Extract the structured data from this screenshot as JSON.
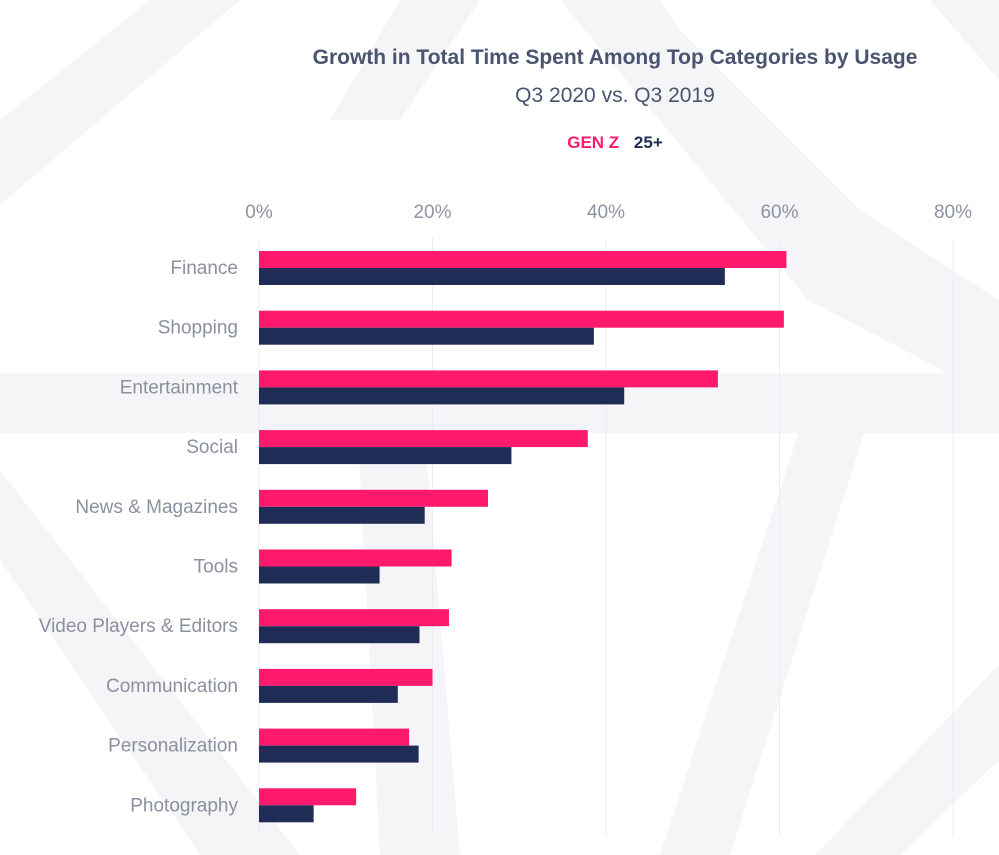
{
  "chart_data": {
    "type": "bar",
    "orientation": "horizontal",
    "title": "Growth in Total Time Spent Among Top Categories by Usage",
    "subtitle": "Q3 2020 vs. Q3 2019",
    "xlabel": "",
    "ylabel": "",
    "xlim": [
      0,
      80
    ],
    "x_ticks": [
      0,
      20,
      40,
      60,
      80
    ],
    "x_tick_labels": [
      "0%",
      "20%",
      "40%",
      "60%",
      "80%"
    ],
    "x_axis_position": "top",
    "grid": true,
    "legend_position": "top-center",
    "categories": [
      "Finance",
      "Shopping",
      "Entertainment",
      "Social",
      "News & Magazines",
      "Tools",
      "Video Players & Editors",
      "Communication",
      "Personalization",
      "Photography"
    ],
    "series": [
      {
        "name": "GEN Z",
        "color": "#ff1a6e",
        "values": [
          60.8,
          60.5,
          52.9,
          37.9,
          26.4,
          22.2,
          21.9,
          20.0,
          17.3,
          11.2
        ]
      },
      {
        "name": "25+",
        "color": "#1f2d56",
        "values": [
          53.7,
          38.6,
          42.1,
          29.1,
          19.1,
          13.9,
          18.5,
          16.0,
          18.4,
          6.3
        ]
      }
    ]
  },
  "colors": {
    "title": "#4a5470",
    "axis_text": "#8d93a3",
    "gridline": "#ececf0",
    "background_pattern": "#f5f5f8"
  }
}
